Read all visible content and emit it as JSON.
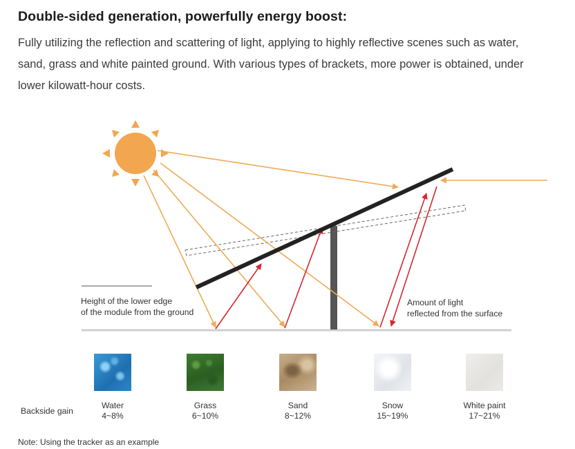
{
  "heading": "Double-sided generation, powerfully energy boost:",
  "description_lines": [
    "Fully utilizing the reflection and scattering of light, applying to highly reflective scenes such as water,",
    "sand, grass and white painted ground. With various types of brackets, more power is obtained, under",
    "lower kilowatt-hour costs."
  ],
  "labels": {
    "height_line1": "Height of the lower edge",
    "height_line2": "of the module from the ground",
    "amount_line1": "Amount of light",
    "amount_line2": "reflected from the surface"
  },
  "gain_label": "Backside gain",
  "surfaces": [
    {
      "name": "Water",
      "gain": "4~8%",
      "icon": "water-texture",
      "color": "#2f8ccc"
    },
    {
      "name": "Grass",
      "gain": "6~10%",
      "icon": "grass-texture",
      "color": "#356f2a"
    },
    {
      "name": "Sand",
      "gain": "8~12%",
      "icon": "sand-texture",
      "color": "#b59870"
    },
    {
      "name": "Snow",
      "gain": "15~19%",
      "icon": "snow-texture",
      "color": "#eef1f4"
    },
    {
      "name": "White paint",
      "gain": "17~21%",
      "icon": "white-paint-texture",
      "color": "#e9e8e6"
    }
  ],
  "note": "Note: Using the tracker as an example",
  "colors": {
    "sun": "#f2a650",
    "incident_ray": "#efaa55",
    "reflected_ray": "#d8262c",
    "panel": "#222222",
    "post": "#555555",
    "ground": "#cfcfcf"
  }
}
